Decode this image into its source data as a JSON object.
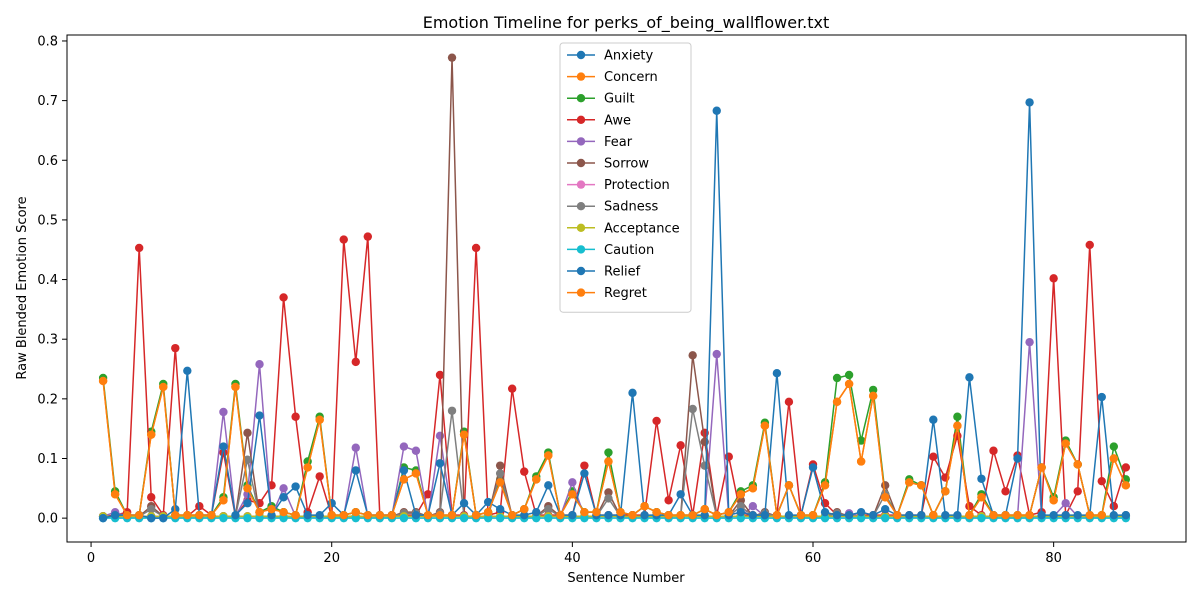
{
  "chart_data": {
    "type": "line",
    "title": "Emotion Timeline for perks_of_being_wallflower.txt",
    "xlabel": "Sentence Number",
    "ylabel": "Raw Blended Emotion Score",
    "xlim": [
      -2,
      91
    ],
    "ylim": [
      -0.04,
      0.81
    ],
    "xticks": [
      0,
      20,
      40,
      60,
      80
    ],
    "yticks": [
      0.0,
      0.1,
      0.2,
      0.3,
      0.4,
      0.5,
      0.6,
      0.7,
      0.8
    ],
    "xtick_labels": [
      "0",
      "20",
      "40",
      "60",
      "80"
    ],
    "ytick_labels": [
      "0.0",
      "0.1",
      "0.2",
      "0.3",
      "0.4",
      "0.5",
      "0.6",
      "0.7",
      "0.8"
    ],
    "legend_position": "upper-center",
    "x_start": 1,
    "series": [
      {
        "name": "Anxiety",
        "color": "#1f77b4",
        "values": [
          0.003,
          0.003,
          0.003,
          0.003,
          0.003,
          0.003,
          0.003,
          0.003,
          0.003,
          0.003,
          0.003,
          0.003,
          0.003,
          0.003,
          0.003,
          0.003,
          0.003,
          0.003,
          0.003,
          0.003,
          0.003,
          0.003,
          0.003,
          0.003,
          0.003,
          0.003,
          0.003,
          0.003,
          0.003,
          0.003,
          0.003,
          0.003,
          0.003,
          0.003,
          0.003,
          0.003,
          0.003,
          0.003,
          0.003,
          0.003,
          0.003,
          0.003,
          0.003,
          0.003,
          0.003,
          0.003,
          0.003,
          0.003,
          0.003,
          0.003,
          0.003,
          0.003,
          0.003,
          0.003,
          0.003,
          0.003,
          0.003,
          0.003,
          0.003,
          0.003,
          0.003,
          0.003,
          0.003,
          0.003,
          0.003,
          0.003,
          0.003,
          0.003,
          0.003,
          0.003,
          0.003,
          0.003,
          0.003,
          0.003,
          0.003,
          0.003,
          0.003,
          0.003,
          0.003,
          0.003,
          0.003,
          0.003,
          0.003,
          0.003,
          0.003,
          0.003
        ]
      },
      {
        "name": "Concern",
        "color": "#ff7f0e",
        "values": [
          0.23,
          0.04,
          0.005,
          0.005,
          0.14,
          0.22,
          0.005,
          0.005,
          0.005,
          0.005,
          0.03,
          0.22,
          0.05,
          0.01,
          0.015,
          0.01,
          0.005,
          0.085,
          0.165,
          0.005,
          0.005,
          0.01,
          0.005,
          0.005,
          0.005,
          0.065,
          0.075,
          0.005,
          0.005,
          0.005,
          0.14,
          0.005,
          0.01,
          0.06,
          0.005,
          0.015,
          0.065,
          0.105,
          0.005,
          0.04,
          0.01,
          0.01,
          0.095,
          0.01,
          0.005,
          0.02,
          0.01,
          0.005,
          0.005,
          0.005,
          0.015,
          0.005,
          0.01,
          0.04,
          0.05,
          0.155,
          0.005,
          0.055,
          0.005,
          0.005,
          0.055,
          0.195,
          0.225,
          0.095,
          0.205,
          0.035,
          0.005,
          0.06,
          0.055,
          0.005,
          0.045,
          0.155,
          0.005,
          0.035,
          0.005,
          0.005,
          0.005,
          0.005,
          0.085,
          0.03,
          0.125,
          0.09,
          0.005,
          0.005,
          0.1,
          0.055
        ]
      },
      {
        "name": "Guilt",
        "color": "#2ca02c",
        "values": [
          0.235,
          0.045,
          0.005,
          0.005,
          0.145,
          0.225,
          0.005,
          0.005,
          0.005,
          0.005,
          0.035,
          0.225,
          0.055,
          0.01,
          0.02,
          0.01,
          0.005,
          0.095,
          0.17,
          0.005,
          0.005,
          0.01,
          0.005,
          0.005,
          0.005,
          0.085,
          0.08,
          0.005,
          0.005,
          0.005,
          0.145,
          0.005,
          0.01,
          0.065,
          0.005,
          0.015,
          0.07,
          0.11,
          0.005,
          0.045,
          0.01,
          0.01,
          0.11,
          0.01,
          0.005,
          0.02,
          0.01,
          0.005,
          0.005,
          0.005,
          0.015,
          0.005,
          0.01,
          0.045,
          0.055,
          0.16,
          0.005,
          0.055,
          0.005,
          0.005,
          0.06,
          0.235,
          0.24,
          0.13,
          0.215,
          0.04,
          0.005,
          0.065,
          0.055,
          0.005,
          0.045,
          0.17,
          0.005,
          0.04,
          0.005,
          0.005,
          0.005,
          0.005,
          0.085,
          0.035,
          0.13,
          0.09,
          0.005,
          0.005,
          0.12,
          0.065
        ]
      },
      {
        "name": "Awe",
        "color": "#d62728",
        "values": [
          0.003,
          0.005,
          0.01,
          0.453,
          0.035,
          0.005,
          0.285,
          0.003,
          0.02,
          0.005,
          0.11,
          0.003,
          0.03,
          0.025,
          0.055,
          0.37,
          0.17,
          0.01,
          0.07,
          0.003,
          0.467,
          0.262,
          0.472,
          0.003,
          0.005,
          0.005,
          0.005,
          0.04,
          0.24,
          0.005,
          0.005,
          0.453,
          0.005,
          0.01,
          0.217,
          0.078,
          0.005,
          0.005,
          0.005,
          0.005,
          0.088,
          0.005,
          0.005,
          0.005,
          0.005,
          0.005,
          0.163,
          0.03,
          0.122,
          0.005,
          0.143,
          0.005,
          0.103,
          0.005,
          0.005,
          0.005,
          0.005,
          0.195,
          0.005,
          0.09,
          0.025,
          0.005,
          0.005,
          0.005,
          0.005,
          0.005,
          0.005,
          0.005,
          0.005,
          0.103,
          0.068,
          0.138,
          0.02,
          0.005,
          0.113,
          0.045,
          0.105,
          0.005,
          0.01,
          0.402,
          0.005,
          0.045,
          0.458,
          0.062,
          0.02,
          0.085
        ]
      },
      {
        "name": "Fear",
        "color": "#9467bd",
        "values": [
          0.003,
          0.01,
          0.003,
          0.003,
          0.003,
          0.003,
          0.003,
          0.003,
          0.003,
          0.003,
          0.178,
          0.003,
          0.04,
          0.258,
          0.003,
          0.05,
          0.003,
          0.003,
          0.003,
          0.003,
          0.003,
          0.118,
          0.003,
          0.003,
          0.003,
          0.12,
          0.113,
          0.003,
          0.138,
          0.003,
          0.003,
          0.003,
          0.003,
          0.003,
          0.003,
          0.003,
          0.003,
          0.003,
          0.003,
          0.06,
          0.003,
          0.003,
          0.003,
          0.003,
          0.003,
          0.003,
          0.003,
          0.003,
          0.003,
          0.003,
          0.003,
          0.275,
          0.003,
          0.003,
          0.02,
          0.003,
          0.003,
          0.003,
          0.003,
          0.003,
          0.003,
          0.003,
          0.008,
          0.003,
          0.003,
          0.003,
          0.003,
          0.003,
          0.003,
          0.003,
          0.003,
          0.003,
          0.003,
          0.003,
          0.003,
          0.003,
          0.003,
          0.295,
          0.003,
          0.003,
          0.025,
          0.003,
          0.003,
          0.003,
          0.003,
          0.003
        ]
      },
      {
        "name": "Sorrow",
        "color": "#8c564b",
        "values": [
          0.003,
          0.003,
          0.003,
          0.003,
          0.02,
          0.003,
          0.003,
          0.003,
          0.003,
          0.003,
          0.003,
          0.003,
          0.143,
          0.003,
          0.003,
          0.003,
          0.003,
          0.003,
          0.003,
          0.003,
          0.003,
          0.003,
          0.003,
          0.003,
          0.003,
          0.01,
          0.01,
          0.003,
          0.01,
          0.772,
          0.003,
          0.003,
          0.003,
          0.088,
          0.003,
          0.003,
          0.003,
          0.02,
          0.003,
          0.003,
          0.003,
          0.003,
          0.043,
          0.003,
          0.003,
          0.003,
          0.003,
          0.003,
          0.003,
          0.273,
          0.128,
          0.003,
          0.003,
          0.03,
          0.003,
          0.01,
          0.003,
          0.003,
          0.003,
          0.003,
          0.003,
          0.01,
          0.003,
          0.003,
          0.003,
          0.055,
          0.003,
          0.003,
          0.003,
          0.003,
          0.003,
          0.003,
          0.003,
          0.003,
          0.003,
          0.003,
          0.003,
          0.003,
          0.003,
          0.003,
          0.003,
          0.003,
          0.003,
          0.003,
          0.003,
          0.003
        ]
      },
      {
        "name": "Protection",
        "color": "#e377c2",
        "values": [
          0.003,
          0.003,
          0.003,
          0.003,
          0.003,
          0.003,
          0.003,
          0.003,
          0.003,
          0.003,
          0.003,
          0.003,
          0.003,
          0.003,
          0.003,
          0.003,
          0.003,
          0.003,
          0.003,
          0.003,
          0.003,
          0.003,
          0.003,
          0.003,
          0.003,
          0.003,
          0.003,
          0.003,
          0.003,
          0.003,
          0.003,
          0.003,
          0.003,
          0.003,
          0.003,
          0.003,
          0.003,
          0.003,
          0.003,
          0.003,
          0.003,
          0.003,
          0.003,
          0.003,
          0.003,
          0.003,
          0.003,
          0.003,
          0.003,
          0.003,
          0.003,
          0.003,
          0.003,
          0.003,
          0.003,
          0.003,
          0.003,
          0.003,
          0.003,
          0.003,
          0.003,
          0.003,
          0.003,
          0.003,
          0.003,
          0.003,
          0.003,
          0.003,
          0.003,
          0.003,
          0.003,
          0.003,
          0.003,
          0.003,
          0.003,
          0.003,
          0.003,
          0.003,
          0.003,
          0.003,
          0.003,
          0.003,
          0.003,
          0.003,
          0.003,
          0.003
        ]
      },
      {
        "name": "Sadness",
        "color": "#7f7f7f",
        "values": [
          0.003,
          0.003,
          0.003,
          0.003,
          0.015,
          0.003,
          0.003,
          0.003,
          0.003,
          0.003,
          0.003,
          0.003,
          0.098,
          0.003,
          0.003,
          0.003,
          0.003,
          0.003,
          0.003,
          0.003,
          0.003,
          0.003,
          0.003,
          0.003,
          0.003,
          0.008,
          0.008,
          0.003,
          0.008,
          0.18,
          0.003,
          0.003,
          0.003,
          0.075,
          0.003,
          0.003,
          0.003,
          0.015,
          0.003,
          0.003,
          0.003,
          0.003,
          0.033,
          0.003,
          0.003,
          0.003,
          0.003,
          0.003,
          0.003,
          0.183,
          0.088,
          0.003,
          0.003,
          0.02,
          0.003,
          0.008,
          0.003,
          0.003,
          0.003,
          0.003,
          0.003,
          0.008,
          0.003,
          0.003,
          0.003,
          0.04,
          0.003,
          0.003,
          0.003,
          0.003,
          0.003,
          0.003,
          0.003,
          0.003,
          0.003,
          0.003,
          0.003,
          0.003,
          0.003,
          0.003,
          0.003,
          0.003,
          0.003,
          0.003,
          0.003,
          0.005
        ]
      },
      {
        "name": "Acceptance",
        "color": "#bcbd22",
        "values": [
          0.003,
          0.003,
          0.003,
          0.003,
          0.003,
          0.003,
          0.003,
          0.003,
          0.003,
          0.003,
          0.003,
          0.003,
          0.003,
          0.003,
          0.003,
          0.003,
          0.003,
          0.003,
          0.003,
          0.003,
          0.003,
          0.003,
          0.003,
          0.003,
          0.003,
          0.003,
          0.003,
          0.003,
          0.003,
          0.003,
          0.003,
          0.003,
          0.003,
          0.003,
          0.003,
          0.003,
          0.003,
          0.003,
          0.003,
          0.003,
          0.003,
          0.003,
          0.003,
          0.003,
          0.003,
          0.003,
          0.003,
          0.003,
          0.003,
          0.003,
          0.003,
          0.003,
          0.003,
          0.003,
          0.003,
          0.003,
          0.003,
          0.003,
          0.003,
          0.003,
          0.003,
          0.003,
          0.003,
          0.003,
          0.003,
          0.003,
          0.003,
          0.003,
          0.003,
          0.003,
          0.003,
          0.003,
          0.003,
          0.003,
          0.003,
          0.003,
          0.003,
          0.003,
          0.003,
          0.003,
          0.003,
          0.003,
          0.003,
          0.003,
          0.003,
          0.003
        ]
      },
      {
        "name": "Caution",
        "color": "#17becf",
        "values": [
          0.0,
          0.0,
          0.0,
          0.0,
          0.0,
          0.0,
          0.0,
          0.0,
          0.0,
          0.0,
          0.0,
          0.0,
          0.0,
          0.0,
          0.0,
          0.0,
          0.0,
          0.0,
          0.0,
          0.0,
          0.0,
          0.0,
          0.0,
          0.0,
          0.0,
          0.0,
          0.0,
          0.0,
          0.0,
          0.0,
          0.0,
          0.0,
          0.0,
          0.0,
          0.0,
          0.0,
          0.0,
          0.0,
          0.0,
          0.0,
          0.0,
          0.0,
          0.0,
          0.0,
          0.0,
          0.0,
          0.0,
          0.0,
          0.0,
          0.0,
          0.0,
          0.0,
          0.0,
          0.0,
          0.0,
          0.0,
          0.0,
          0.0,
          0.0,
          0.0,
          0.0,
          0.0,
          0.0,
          0.0,
          0.0,
          0.0,
          0.0,
          0.0,
          0.0,
          0.0,
          0.0,
          0.0,
          0.0,
          0.0,
          0.0,
          0.0,
          0.0,
          0.0,
          0.0,
          0.0,
          0.0,
          0.0,
          0.0,
          0.0,
          0.0,
          0.0
        ]
      },
      {
        "name": "Relief",
        "color": "#1f77b4",
        "values": [
          0.0,
          0.005,
          0.005,
          0.005,
          0.0,
          0.0,
          0.015,
          0.247,
          0.005,
          0.005,
          0.12,
          0.005,
          0.025,
          0.172,
          0.005,
          0.035,
          0.053,
          0.005,
          0.005,
          0.025,
          0.005,
          0.08,
          0.005,
          0.005,
          0.005,
          0.08,
          0.005,
          0.005,
          0.092,
          0.005,
          0.025,
          0.005,
          0.027,
          0.015,
          0.005,
          0.005,
          0.01,
          0.055,
          0.005,
          0.005,
          0.075,
          0.005,
          0.005,
          0.005,
          0.21,
          0.005,
          0.005,
          0.005,
          0.04,
          0.005,
          0.005,
          0.683,
          0.005,
          0.01,
          0.005,
          0.005,
          0.243,
          0.005,
          0.005,
          0.085,
          0.01,
          0.005,
          0.005,
          0.01,
          0.005,
          0.015,
          0.005,
          0.005,
          0.005,
          0.165,
          0.005,
          0.005,
          0.236,
          0.066,
          0.005,
          0.005,
          0.1,
          0.697,
          0.005,
          0.005,
          0.005,
          0.005,
          0.005,
          0.203,
          0.005,
          0.005
        ]
      },
      {
        "name": "Regret",
        "color": "#ff7f0e",
        "values": [
          0.23,
          0.04,
          0.005,
          0.005,
          0.14,
          0.22,
          0.005,
          0.005,
          0.005,
          0.005,
          0.03,
          0.22,
          0.05,
          0.01,
          0.015,
          0.01,
          0.005,
          0.085,
          0.165,
          0.005,
          0.005,
          0.01,
          0.005,
          0.005,
          0.005,
          0.065,
          0.075,
          0.005,
          0.005,
          0.005,
          0.14,
          0.005,
          0.01,
          0.06,
          0.005,
          0.015,
          0.065,
          0.105,
          0.005,
          0.04,
          0.01,
          0.01,
          0.095,
          0.01,
          0.005,
          0.02,
          0.01,
          0.005,
          0.005,
          0.005,
          0.015,
          0.005,
          0.01,
          0.04,
          0.05,
          0.155,
          0.005,
          0.055,
          0.005,
          0.005,
          0.055,
          0.195,
          0.225,
          0.095,
          0.205,
          0.035,
          0.005,
          0.06,
          0.055,
          0.005,
          0.045,
          0.155,
          0.005,
          0.035,
          0.005,
          0.005,
          0.005,
          0.005,
          0.085,
          0.03,
          0.125,
          0.09,
          0.005,
          0.005,
          0.1,
          0.055
        ]
      }
    ]
  }
}
